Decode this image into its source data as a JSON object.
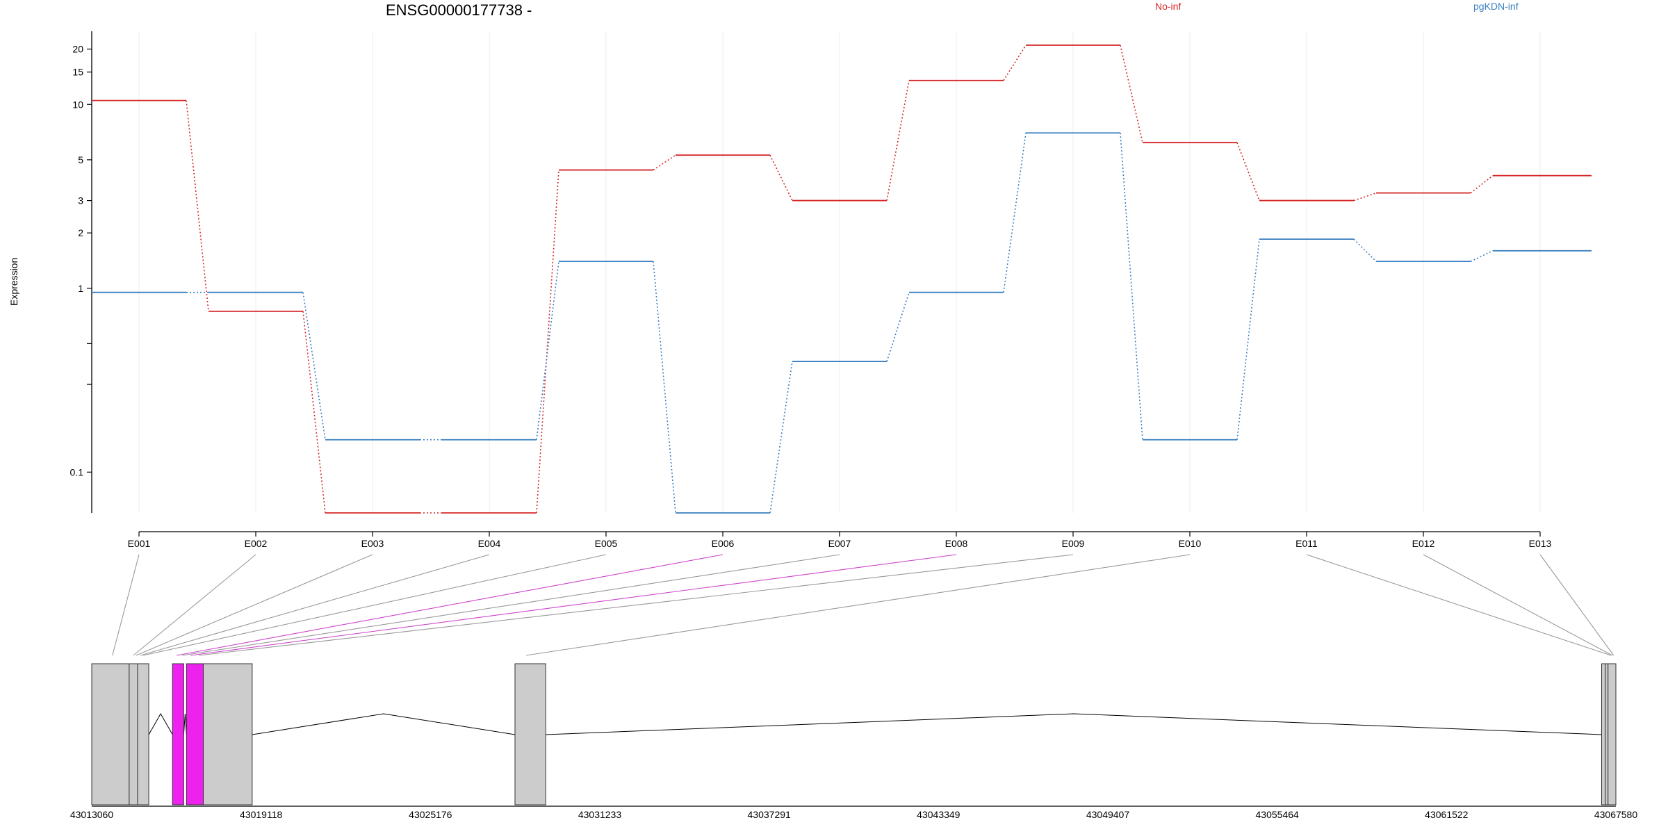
{
  "chart_data": {
    "type": "line",
    "title": "ENSG00000177738 -",
    "ylabel": "Expression",
    "y_scale": "log",
    "y_ticks": [
      {
        "value": 0.1,
        "label": "0.1"
      },
      {
        "value": 0.3,
        "label": ""
      },
      {
        "value": 0.5,
        "label": ""
      },
      {
        "value": 1,
        "label": "1"
      },
      {
        "value": 2,
        "label": "2"
      },
      {
        "value": 3,
        "label": "3"
      },
      {
        "value": 5,
        "label": "5"
      },
      {
        "value": 10,
        "label": "10"
      },
      {
        "value": 15,
        "label": "15"
      },
      {
        "value": 20,
        "label": "20"
      }
    ],
    "ylim": [
      0.06,
      25
    ],
    "categories": [
      "E001",
      "E002",
      "E003",
      "E004",
      "E005",
      "E006",
      "E007",
      "E008",
      "E009",
      "E010",
      "E011",
      "E012",
      "E013"
    ],
    "legend_position": "top",
    "series": [
      {
        "name": "No-inf",
        "color": "#d62728",
        "values": [
          10.5,
          0.75,
          0.06,
          0.06,
          4.4,
          5.3,
          3.0,
          13.5,
          21.0,
          6.2,
          3.0,
          3.3,
          4.1
        ]
      },
      {
        "name": "pgKDN-inf",
        "color": "#3a7fc1",
        "values": [
          0.95,
          0.95,
          0.15,
          0.15,
          1.4,
          0.06,
          0.4,
          0.95,
          7.0,
          0.15,
          1.85,
          1.4,
          1.6
        ]
      }
    ],
    "gene_model": {
      "coord_ticks": [
        "43013060",
        "43019118",
        "43025176",
        "43031233",
        "43037291",
        "43043349",
        "43049407",
        "43055464",
        "43061522",
        "43067580"
      ],
      "range": [
        43013060,
        43067580
      ],
      "exons": [
        {
          "id": "E001",
          "start": 43013060,
          "end": 43014400,
          "highlight": false
        },
        {
          "id": "E002",
          "start": 43014400,
          "end": 43014700,
          "highlight": false
        },
        {
          "id": "E003",
          "start": 43014700,
          "end": 43015100,
          "highlight": false
        },
        {
          "id": "E004",
          "start": 43015950,
          "end": 43016350,
          "highlight": true
        },
        {
          "id": "E005",
          "start": 43016450,
          "end": 43017050,
          "highlight": true
        },
        {
          "id": "E006",
          "start": 43017050,
          "end": 43018800,
          "highlight": false
        },
        {
          "id": "E007",
          "start": 43028200,
          "end": 43029300,
          "highlight": false
        },
        {
          "id": "E008",
          "start": 43067070,
          "end": 43067200,
          "highlight": false
        },
        {
          "id": "E009",
          "start": 43067200,
          "end": 43067300,
          "highlight": false
        },
        {
          "id": "E010",
          "start": 43067300,
          "end": 43067580,
          "highlight": false
        }
      ],
      "connectors": [
        {
          "from": "E001",
          "to": 43013800,
          "highlight": false
        },
        {
          "from": "E002",
          "to": 43014550,
          "highlight": false
        },
        {
          "from": "E003",
          "to": 43014650,
          "highlight": false
        },
        {
          "from": "E004",
          "to": 43014800,
          "highlight": false
        },
        {
          "from": "E005",
          "to": 43014900,
          "highlight": false
        },
        {
          "from": "E006",
          "to": 43016100,
          "highlight": true
        },
        {
          "from": "E007",
          "to": 43016300,
          "highlight": false
        },
        {
          "from": "E008",
          "to": 43016600,
          "highlight": true
        },
        {
          "from": "E009",
          "to": 43016900,
          "highlight": false
        },
        {
          "from": "E010",
          "to": 43028600,
          "highlight": false
        },
        {
          "from": "E011",
          "to": 43067400,
          "highlight": false
        },
        {
          "from": "E012",
          "to": 43067450,
          "highlight": false
        },
        {
          "from": "E013",
          "to": 43067500,
          "highlight": false
        }
      ]
    }
  }
}
